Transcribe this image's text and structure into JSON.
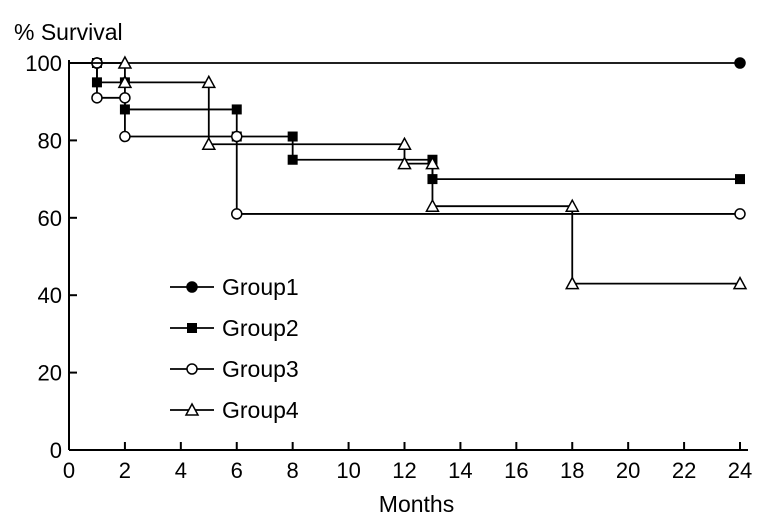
{
  "chart_data": {
    "type": "line",
    "step": true,
    "title": "",
    "ylabel": "% Survival",
    "xlabel": "Months",
    "xlim": [
      0,
      24
    ],
    "ylim": [
      0,
      100
    ],
    "x_ticks": [
      0,
      2,
      4,
      6,
      8,
      10,
      12,
      14,
      16,
      18,
      20,
      22,
      24
    ],
    "y_ticks": [
      0,
      20,
      40,
      60,
      80,
      100
    ],
    "grid": false,
    "legend_position": "lower-left",
    "series": [
      {
        "name": "Group1",
        "marker": "filled-circle",
        "x": [
          0,
          1,
          24
        ],
        "y": [
          100,
          100,
          100
        ],
        "marked_points": [
          1,
          2
        ]
      },
      {
        "name": "Group2",
        "marker": "filled-square",
        "x": [
          0,
          1,
          2,
          6,
          8,
          13,
          24
        ],
        "y": [
          100,
          95,
          88,
          81,
          75,
          70,
          70
        ],
        "marked_points": [
          1,
          2,
          3,
          4,
          5,
          6
        ]
      },
      {
        "name": "Group3",
        "marker": "open-circle",
        "x": [
          0,
          1,
          2,
          6,
          24
        ],
        "y": [
          100,
          91,
          81,
          61,
          61
        ],
        "marked_points": [
          1,
          2,
          3,
          4
        ]
      },
      {
        "name": "Group4",
        "marker": "open-triangle",
        "x": [
          0,
          2,
          5,
          12,
          13,
          18,
          24
        ],
        "y": [
          100,
          95,
          79,
          74,
          63,
          43,
          43
        ],
        "marked_points": [
          1,
          2,
          3,
          4,
          5,
          6
        ]
      }
    ]
  }
}
